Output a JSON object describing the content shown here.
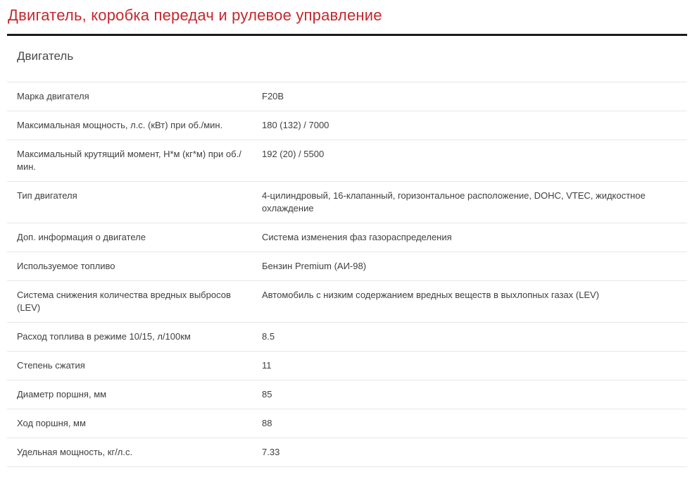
{
  "page": {
    "title": "Двигатель, коробка передач и рулевое управление",
    "section_heading": "Двигатель"
  },
  "colors": {
    "title_red": "#c4282d",
    "divider_dark": "#1b1b1b",
    "row_separator": "#e7e7e7",
    "body_text": "#3f3f3f"
  },
  "table": {
    "rows": [
      {
        "label": "Марка двигателя",
        "value": "F20B"
      },
      {
        "label": "Максимальная мощность, л.с. (кВт) при об./мин.",
        "value": "180 (132) / 7000"
      },
      {
        "label": "Максимальный крутящий момент, Н*м (кг*м) при об./мин.",
        "value": "192 (20) / 5500"
      },
      {
        "label": "Тип двигателя",
        "value": "4-цилиндровый, 16-клапанный, горизонтальное расположение, DOHC, VTEC, жидкостное охлаждение"
      },
      {
        "label": "Доп. информация о двигателе",
        "value": "Система изменения фаз газораспределения"
      },
      {
        "label": "Используемое топливо",
        "value": "Бензин Premium (АИ-98)"
      },
      {
        "label": "Система снижения количества вредных выбросов (LEV)",
        "value": "Автомобиль с низким содержанием вредных веществ в выхлопных газах (LEV)"
      },
      {
        "label": "Расход топлива в режиме 10/15, л/100км",
        "value": "8.5"
      },
      {
        "label": "Степень сжатия",
        "value": "11"
      },
      {
        "label": "Диаметр поршня, мм",
        "value": "85"
      },
      {
        "label": "Ход поршня, мм",
        "value": "88"
      },
      {
        "label": "Удельная мощность, кг/л.с.",
        "value": "7.33"
      }
    ]
  }
}
